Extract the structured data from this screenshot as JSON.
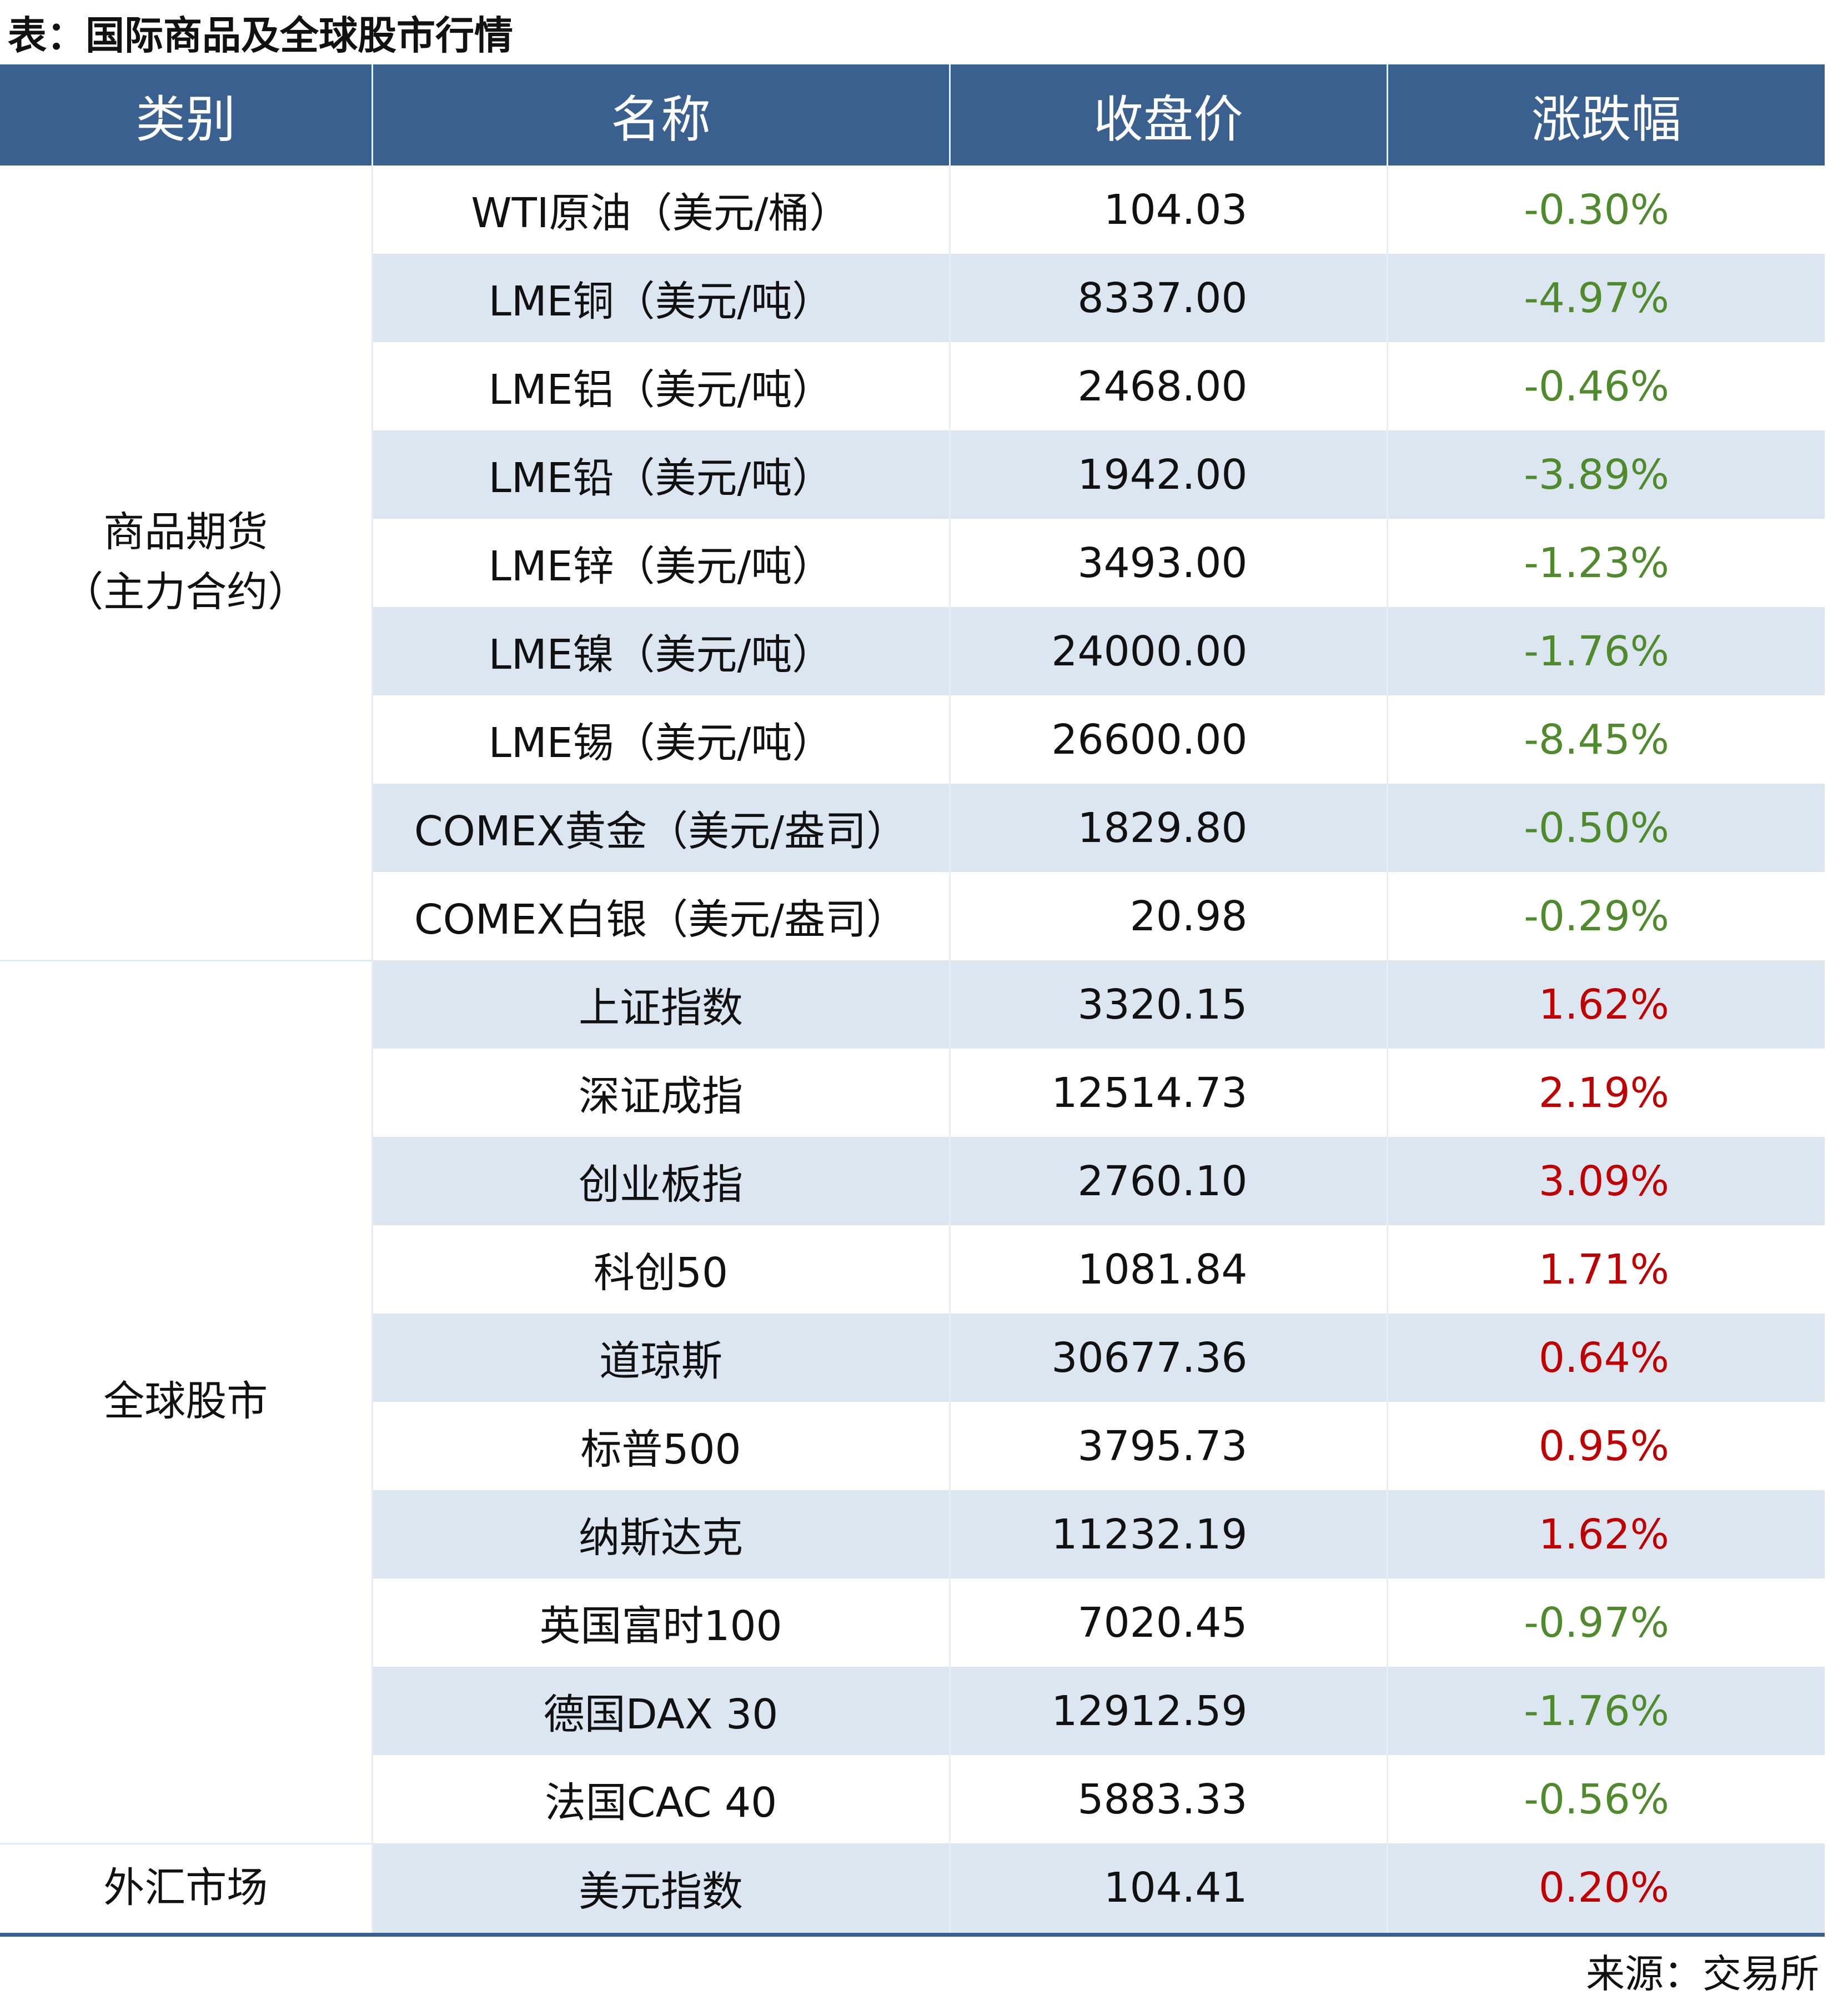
{
  "title": "表：国际商品及全球股市行情",
  "headers": [
    "类别",
    "名称",
    "收盘价",
    "涨跌幅"
  ],
  "categories": [
    {
      "label": "商品期货\n（主力合约）",
      "line1": "商品期货",
      "line2": "（主力合约）"
    },
    {
      "label": "全球股市"
    },
    {
      "label": "外汇市场"
    }
  ],
  "rows": [
    {
      "name": "WTI原油（美元/桶）",
      "price": "104.03",
      "change": "-0.30%",
      "dir": "down"
    },
    {
      "name": "LME铜（美元/吨）",
      "price": "8337.00",
      "change": "-4.97%",
      "dir": "down"
    },
    {
      "name": "LME铝（美元/吨）",
      "price": "2468.00",
      "change": "-0.46%",
      "dir": "down"
    },
    {
      "name": "LME铅（美元/吨）",
      "price": "1942.00",
      "change": "-3.89%",
      "dir": "down"
    },
    {
      "name": "LME锌（美元/吨）",
      "price": "3493.00",
      "change": "-1.23%",
      "dir": "down"
    },
    {
      "name": "LME镍（美元/吨）",
      "price": "24000.00",
      "change": "-1.76%",
      "dir": "down"
    },
    {
      "name": "LME锡（美元/吨）",
      "price": "26600.00",
      "change": "-8.45%",
      "dir": "down"
    },
    {
      "name": "COMEX黄金（美元/盎司）",
      "price": "1829.80",
      "change": "-0.50%",
      "dir": "down"
    },
    {
      "name": "COMEX白银（美元/盎司）",
      "price": "20.98",
      "change": "-0.29%",
      "dir": "down"
    },
    {
      "name": "上证指数",
      "price": "3320.15",
      "change": "1.62%",
      "dir": "up"
    },
    {
      "name": "深证成指",
      "price": "12514.73",
      "change": "2.19%",
      "dir": "up"
    },
    {
      "name": "创业板指",
      "price": "2760.10",
      "change": "3.09%",
      "dir": "up"
    },
    {
      "name": "科创50",
      "price": "1081.84",
      "change": "1.71%",
      "dir": "up"
    },
    {
      "name": "道琼斯",
      "price": "30677.36",
      "change": "0.64%",
      "dir": "up"
    },
    {
      "name": "标普500",
      "price": "3795.73",
      "change": "0.95%",
      "dir": "up"
    },
    {
      "name": "纳斯达克",
      "price": "11232.19",
      "change": "1.62%",
      "dir": "up"
    },
    {
      "name": "英国富时100",
      "price": "7020.45",
      "change": "-0.97%",
      "dir": "down"
    },
    {
      "name": "德国DAX 30",
      "price": "12912.59",
      "change": "-1.76%",
      "dir": "down"
    },
    {
      "name": "法国CAC 40",
      "price": "5883.33",
      "change": "-0.56%",
      "dir": "down"
    },
    {
      "name": "美元指数",
      "price": "104.41",
      "change": "0.20%",
      "dir": "up"
    }
  ],
  "source": "来源：交易所",
  "colors": {
    "header": "#3A6090",
    "band": "#DCE6F1",
    "down": "#4F8A2D",
    "up": "#C00000"
  }
}
